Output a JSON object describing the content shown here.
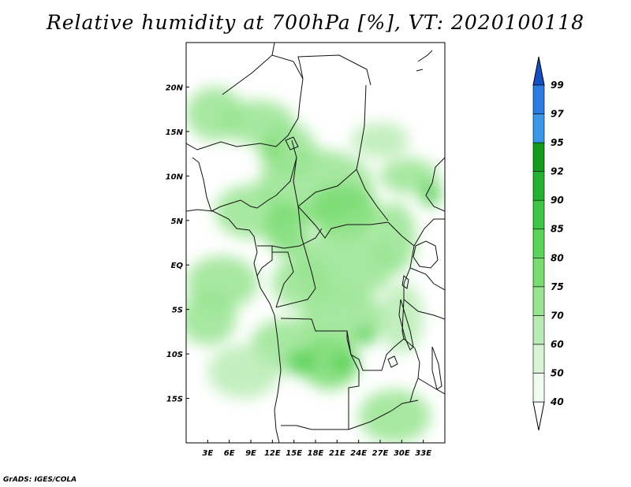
{
  "title": "Relative humidity at 700hPa [%], VT: 2020100118",
  "credit": "GrADS: IGES/COLA",
  "map": {
    "lon_range": [
      0,
      36
    ],
    "lat_range": [
      -20,
      25
    ],
    "x_ticks": [
      {
        "lon": 3,
        "label": "3E"
      },
      {
        "lon": 6,
        "label": "6E"
      },
      {
        "lon": 9,
        "label": "9E"
      },
      {
        "lon": 12,
        "label": "12E"
      },
      {
        "lon": 15,
        "label": "15E"
      },
      {
        "lon": 18,
        "label": "18E"
      },
      {
        "lon": 21,
        "label": "21E"
      },
      {
        "lon": 24,
        "label": "24E"
      },
      {
        "lon": 27,
        "label": "27E"
      },
      {
        "lon": 30,
        "label": "30E"
      },
      {
        "lon": 33,
        "label": "33E"
      }
    ],
    "y_ticks": [
      {
        "lat": 20,
        "label": "20N"
      },
      {
        "lat": 15,
        "label": "15N"
      },
      {
        "lat": 10,
        "label": "10N"
      },
      {
        "lat": 5,
        "label": "5N"
      },
      {
        "lat": 0,
        "label": "EQ"
      },
      {
        "lat": -5,
        "label": "5S"
      },
      {
        "lat": -10,
        "label": "10S"
      },
      {
        "lat": -15,
        "label": "15S"
      }
    ],
    "humidity_patches": [
      {
        "lon": 4,
        "lat": 17,
        "rx": 4,
        "ry": 3,
        "level": 2
      },
      {
        "lon": 10,
        "lat": 16,
        "rx": 5,
        "ry": 2.5,
        "level": 2
      },
      {
        "lon": 14,
        "lat": 13,
        "rx": 4,
        "ry": 3,
        "level": 2
      },
      {
        "lon": 27,
        "lat": 14,
        "rx": 4,
        "ry": 2,
        "level": 1
      },
      {
        "lon": 31,
        "lat": 10,
        "rx": 4,
        "ry": 2,
        "level": 2
      },
      {
        "lon": 18,
        "lat": 9,
        "rx": 8,
        "ry": 4,
        "level": 2
      },
      {
        "lon": 9,
        "lat": 6,
        "rx": 5,
        "ry": 3,
        "level": 2
      },
      {
        "lon": 14,
        "lat": 4,
        "rx": 3,
        "ry": 3,
        "level": 3
      },
      {
        "lon": 22,
        "lat": 6,
        "rx": 5,
        "ry": 3,
        "level": 3
      },
      {
        "lon": 29,
        "lat": 3,
        "rx": 3,
        "ry": 4,
        "level": 2
      },
      {
        "lon": 22,
        "lat": 0,
        "rx": 7,
        "ry": 4,
        "level": 2
      },
      {
        "lon": 5,
        "lat": -2,
        "rx": 5,
        "ry": 3,
        "level": 2
      },
      {
        "lon": 16,
        "lat": -2,
        "rx": 4,
        "ry": 3,
        "level": 2
      },
      {
        "lon": 3,
        "lat": -6,
        "rx": 4,
        "ry": 3,
        "level": 2
      },
      {
        "lon": 22,
        "lat": -6,
        "rx": 6,
        "ry": 3,
        "level": 2
      },
      {
        "lon": 14,
        "lat": -9,
        "rx": 5,
        "ry": 3,
        "level": 2
      },
      {
        "lon": 20,
        "lat": -11,
        "rx": 4,
        "ry": 3,
        "level": 3
      },
      {
        "lon": 16,
        "lat": -11,
        "rx": 2,
        "ry": 1.5,
        "level": 4
      },
      {
        "lon": 22,
        "lat": -11,
        "rx": 2,
        "ry": 1.2,
        "level": 4
      },
      {
        "lon": 25,
        "lat": -8,
        "rx": 1.5,
        "ry": 1,
        "level": 4
      },
      {
        "lon": 30,
        "lat": -6,
        "rx": 3,
        "ry": 4,
        "level": 1
      },
      {
        "lon": 29,
        "lat": -17,
        "rx": 5,
        "ry": 3,
        "level": 2
      },
      {
        "lon": 8,
        "lat": -12,
        "rx": 5,
        "ry": 3,
        "level": 1
      },
      {
        "lon": 34,
        "lat": 8,
        "rx": 1.5,
        "ry": 1.5,
        "level": 4
      },
      {
        "lon": 12,
        "lat": 13,
        "rx": 1.5,
        "ry": 1,
        "level": 3
      }
    ]
  },
  "colorbar": {
    "levels": [
      "40",
      "50",
      "60",
      "70",
      "75",
      "80",
      "85",
      "90",
      "92",
      "95",
      "97",
      "99"
    ],
    "colors": [
      "#f0fcf0",
      "#d8f4d4",
      "#b8ecb4",
      "#98e490",
      "#78dc70",
      "#5cd25a",
      "#40c444",
      "#26b030",
      "#119a1c",
      "#3c96e6",
      "#2c7ce0",
      "#1c62d4"
    ],
    "below_color": "#ffffff",
    "above_color": "#1450c4"
  }
}
